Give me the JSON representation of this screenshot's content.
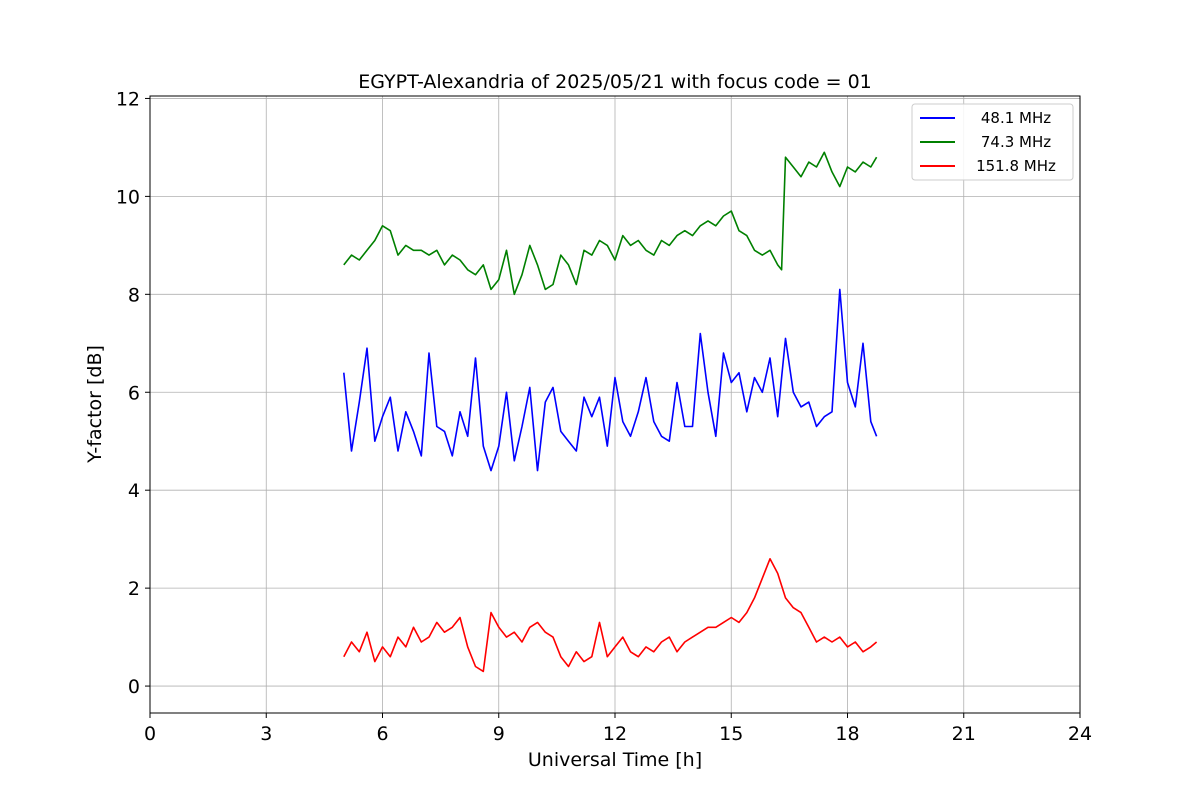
{
  "chart_data": {
    "type": "line",
    "title": "EGYPT-Alexandria of 2025/05/21 with focus code = 01",
    "xlabel": "Universal Time [h]",
    "ylabel": "Y-factor [dB]",
    "xlim": [
      0,
      24
    ],
    "ylim": [
      -0.55,
      12.05
    ],
    "xticks": [
      0,
      3,
      6,
      9,
      12,
      15,
      18,
      21,
      24
    ],
    "yticks": [
      0,
      2,
      4,
      6,
      8,
      10,
      12
    ],
    "grid": true,
    "legend_position": "top-right",
    "series": [
      {
        "name": "48.1 MHz",
        "color": "#0000ff",
        "x": [
          5.0,
          5.2,
          5.4,
          5.6,
          5.8,
          6.0,
          6.2,
          6.4,
          6.6,
          6.8,
          7.0,
          7.2,
          7.4,
          7.6,
          7.8,
          8.0,
          8.2,
          8.4,
          8.6,
          8.8,
          9.0,
          9.2,
          9.4,
          9.6,
          9.8,
          10.0,
          10.2,
          10.4,
          10.6,
          10.8,
          11.0,
          11.2,
          11.4,
          11.6,
          11.8,
          12.0,
          12.2,
          12.4,
          12.6,
          12.8,
          13.0,
          13.2,
          13.4,
          13.6,
          13.8,
          14.0,
          14.2,
          14.4,
          14.6,
          14.8,
          15.0,
          15.2,
          15.4,
          15.6,
          15.8,
          16.0,
          16.2,
          16.4,
          16.6,
          16.8,
          17.0,
          17.2,
          17.4,
          17.6,
          17.8,
          18.0,
          18.2,
          18.4,
          18.6,
          18.75
        ],
        "values": [
          6.4,
          4.8,
          5.8,
          6.9,
          5.0,
          5.5,
          5.9,
          4.8,
          5.6,
          5.2,
          4.7,
          6.8,
          5.3,
          5.2,
          4.7,
          5.6,
          5.1,
          6.7,
          4.9,
          4.4,
          4.9,
          6.0,
          4.6,
          5.3,
          6.1,
          4.4,
          5.8,
          6.1,
          5.2,
          5.0,
          4.8,
          5.9,
          5.5,
          5.9,
          4.9,
          6.3,
          5.4,
          5.1,
          5.6,
          6.3,
          5.4,
          5.1,
          5.0,
          6.2,
          5.3,
          5.3,
          7.2,
          6.0,
          5.1,
          6.8,
          6.2,
          6.4,
          5.6,
          6.3,
          6.0,
          6.7,
          5.5,
          7.1,
          6.0,
          5.7,
          5.8,
          5.3,
          5.5,
          5.6,
          8.1,
          6.2,
          5.7,
          7.0,
          5.4,
          5.1
        ]
      },
      {
        "name": "74.3 MHz",
        "color": "#008000",
        "x": [
          5.0,
          5.2,
          5.4,
          5.6,
          5.8,
          6.0,
          6.2,
          6.4,
          6.6,
          6.8,
          7.0,
          7.2,
          7.4,
          7.6,
          7.8,
          8.0,
          8.2,
          8.4,
          8.6,
          8.8,
          9.0,
          9.2,
          9.4,
          9.6,
          9.8,
          10.0,
          10.2,
          10.4,
          10.6,
          10.8,
          11.0,
          11.2,
          11.4,
          11.6,
          11.8,
          12.0,
          12.2,
          12.4,
          12.6,
          12.8,
          13.0,
          13.2,
          13.4,
          13.6,
          13.8,
          14.0,
          14.2,
          14.4,
          14.6,
          14.8,
          15.0,
          15.2,
          15.4,
          15.6,
          15.8,
          16.0,
          16.2,
          16.3,
          16.4,
          16.6,
          16.8,
          17.0,
          17.2,
          17.4,
          17.6,
          17.8,
          18.0,
          18.2,
          18.4,
          18.6,
          18.75
        ],
        "values": [
          8.6,
          8.8,
          8.7,
          8.9,
          9.1,
          9.4,
          9.3,
          8.8,
          9.0,
          8.9,
          8.9,
          8.8,
          8.9,
          8.6,
          8.8,
          8.7,
          8.5,
          8.4,
          8.6,
          8.1,
          8.3,
          8.9,
          8.0,
          8.4,
          9.0,
          8.6,
          8.1,
          8.2,
          8.8,
          8.6,
          8.2,
          8.9,
          8.8,
          9.1,
          9.0,
          8.7,
          9.2,
          9.0,
          9.1,
          8.9,
          8.8,
          9.1,
          9.0,
          9.2,
          9.3,
          9.2,
          9.4,
          9.5,
          9.4,
          9.6,
          9.7,
          9.3,
          9.2,
          8.9,
          8.8,
          8.9,
          8.6,
          8.5,
          10.8,
          10.6,
          10.4,
          10.7,
          10.6,
          10.9,
          10.5,
          10.2,
          10.6,
          10.5,
          10.7,
          10.6,
          10.8
        ]
      },
      {
        "name": "151.8 MHz",
        "color": "#ff0000",
        "x": [
          5.0,
          5.2,
          5.4,
          5.6,
          5.8,
          6.0,
          6.2,
          6.4,
          6.6,
          6.8,
          7.0,
          7.2,
          7.4,
          7.6,
          7.8,
          8.0,
          8.2,
          8.4,
          8.6,
          8.8,
          9.0,
          9.2,
          9.4,
          9.6,
          9.8,
          10.0,
          10.2,
          10.4,
          10.6,
          10.8,
          11.0,
          11.2,
          11.4,
          11.6,
          11.8,
          12.0,
          12.2,
          12.4,
          12.6,
          12.8,
          13.0,
          13.2,
          13.4,
          13.6,
          13.8,
          14.0,
          14.2,
          14.4,
          14.6,
          14.8,
          15.0,
          15.2,
          15.4,
          15.6,
          15.8,
          16.0,
          16.2,
          16.4,
          16.6,
          16.8,
          17.0,
          17.2,
          17.4,
          17.6,
          17.8,
          18.0,
          18.2,
          18.4,
          18.6,
          18.75
        ],
        "values": [
          0.6,
          0.9,
          0.7,
          1.1,
          0.5,
          0.8,
          0.6,
          1.0,
          0.8,
          1.2,
          0.9,
          1.0,
          1.3,
          1.1,
          1.2,
          1.4,
          0.8,
          0.4,
          0.3,
          1.5,
          1.2,
          1.0,
          1.1,
          0.9,
          1.2,
          1.3,
          1.1,
          1.0,
          0.6,
          0.4,
          0.7,
          0.5,
          0.6,
          1.3,
          0.6,
          0.8,
          1.0,
          0.7,
          0.6,
          0.8,
          0.7,
          0.9,
          1.0,
          0.7,
          0.9,
          1.0,
          1.1,
          1.2,
          1.2,
          1.3,
          1.4,
          1.3,
          1.5,
          1.8,
          2.2,
          2.6,
          2.3,
          1.8,
          1.6,
          1.5,
          1.2,
          0.9,
          1.0,
          0.9,
          1.0,
          0.8,
          0.9,
          0.7,
          0.8,
          0.9
        ]
      }
    ]
  }
}
